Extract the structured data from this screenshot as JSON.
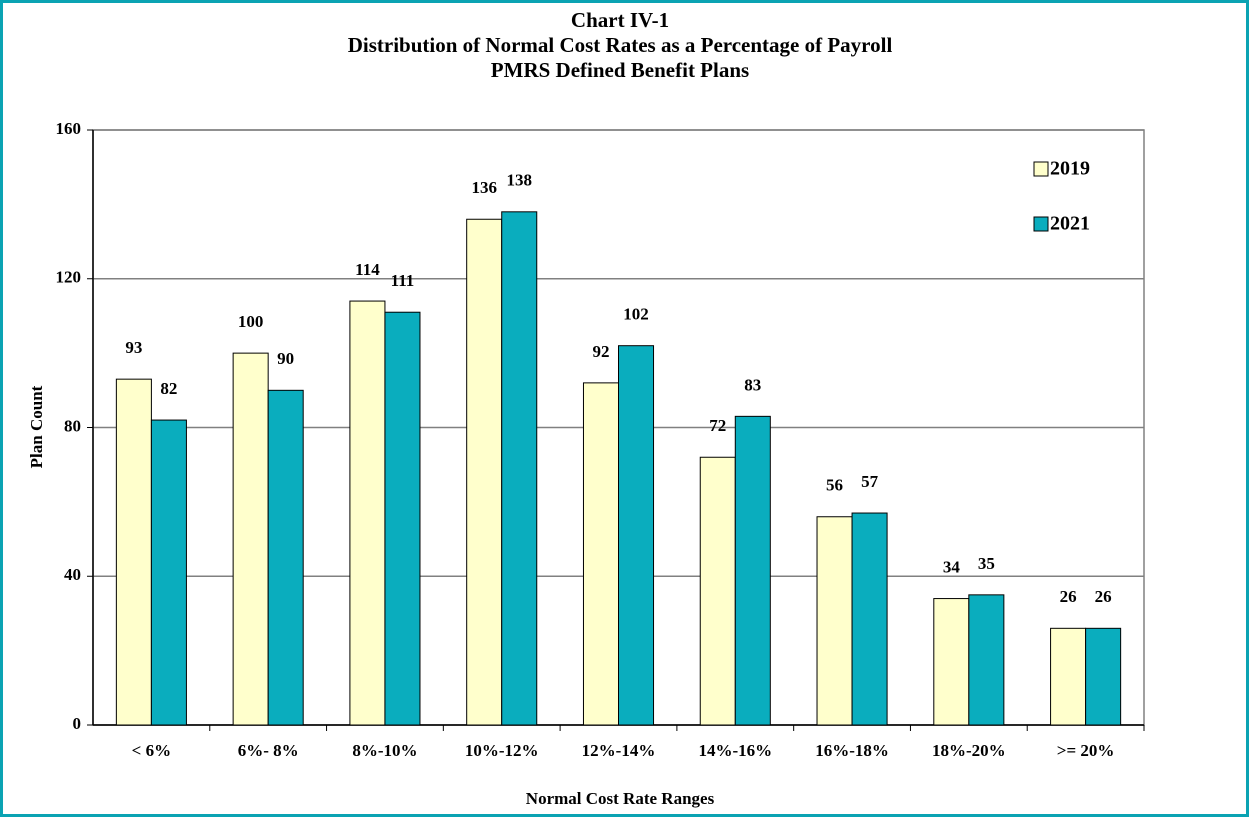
{
  "chart_data": {
    "type": "bar",
    "title": [
      "Chart IV-1",
      "Distribution of Normal Cost Rates as a Percentage of Payroll",
      "PMRS Defined Benefit Plans"
    ],
    "x_label": "Normal Cost Rate Ranges",
    "y_label": "Plan Count",
    "categories": [
      "< 6%",
      "6%- 8%",
      "8%-10%",
      "10%-12%",
      "12%-14%",
      "14%-16%",
      "16%-18%",
      "18%-20%",
      ">= 20%"
    ],
    "series": [
      {
        "name": "2019",
        "color": "#ffffcc",
        "values": [
          93,
          100,
          114,
          136,
          92,
          72,
          56,
          34,
          26
        ]
      },
      {
        "name": "2021",
        "color": "#0aadbe",
        "values": [
          82,
          90,
          111,
          138,
          102,
          83,
          57,
          35,
          26
        ]
      }
    ],
    "ylim": [
      0,
      160
    ],
    "yticks": [
      0,
      40,
      80,
      120,
      160
    ],
    "grid": true,
    "legend": "upper right"
  }
}
